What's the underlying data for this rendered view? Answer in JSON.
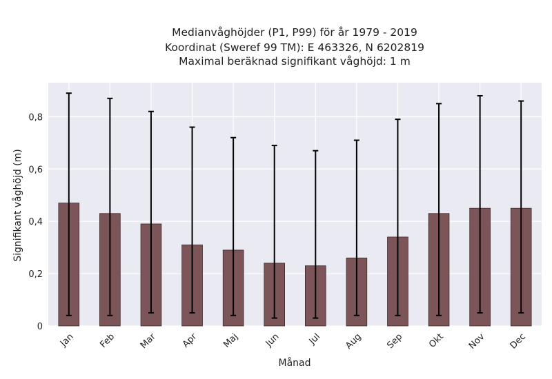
{
  "chart_data": {
    "type": "bar",
    "title_lines": [
      "Medianvåghöjder (P1, P99) för år 1979 - 2019",
      "Koordinat (Sweref 99 TM): E 463326, N 6202819",
      "Maximal beräknad signifikant våghöjd: 1 m"
    ],
    "xlabel": "Månad",
    "ylabel": "Signifikant våghöjd (m)",
    "categories": [
      "Jan",
      "Feb",
      "Mar",
      "Apr",
      "Maj",
      "Jun",
      "Jul",
      "Aug",
      "Sep",
      "Okt",
      "Nov",
      "Dec"
    ],
    "values": [
      0.47,
      0.43,
      0.39,
      0.31,
      0.29,
      0.24,
      0.23,
      0.26,
      0.34,
      0.43,
      0.45,
      0.45
    ],
    "error_low": [
      0.04,
      0.04,
      0.05,
      0.05,
      0.04,
      0.03,
      0.03,
      0.04,
      0.04,
      0.04,
      0.05,
      0.05
    ],
    "error_high": [
      0.89,
      0.87,
      0.82,
      0.76,
      0.72,
      0.69,
      0.67,
      0.71,
      0.79,
      0.85,
      0.88,
      0.86
    ],
    "ylim": [
      0,
      0.93
    ],
    "yticks": [
      0,
      0.2,
      0.4,
      0.6,
      0.8
    ],
    "ytick_labels": [
      "0",
      "0,2",
      "0,4",
      "0,6",
      "0,8"
    ],
    "grid": true,
    "colors": {
      "bar": "#7b5557",
      "plot_background": "#eaeaf2",
      "error_bar": "#000000",
      "grid": "#ffffff"
    }
  }
}
